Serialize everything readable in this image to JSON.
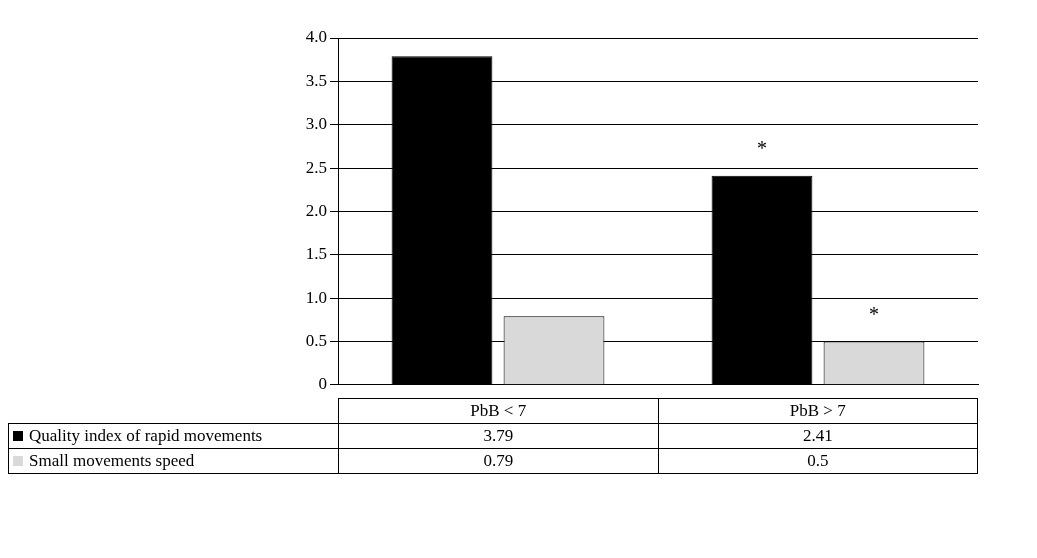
{
  "chart_data": {
    "type": "bar",
    "categories": [
      "PbB < 7",
      "PbB > 7"
    ],
    "series": [
      {
        "name": "Quality index of rapid movements",
        "color": "#000000",
        "values": [
          3.79,
          2.41
        ]
      },
      {
        "name": "Small movements speed",
        "color": "#d9d9d9",
        "values": [
          0.79,
          0.5
        ]
      }
    ],
    "ylim": [
      0,
      4
    ],
    "yticks": [
      0,
      {
        "value": 0.5,
        "label": "0.5"
      },
      {
        "value": 1,
        "label": "1.0"
      },
      {
        "value": 1.5,
        "label": "1.5"
      },
      {
        "value": 2,
        "label": "2.0"
      },
      {
        "value": 2.5,
        "label": "2.5"
      },
      {
        "value": 3,
        "label": "3.0"
      },
      {
        "value": 3.5,
        "label": "3.5"
      },
      {
        "value": 4,
        "label": "4.0"
      }
    ],
    "grid": "y",
    "legend": "bottom",
    "data_labels": true,
    "annotations": [
      "*",
      "*"
    ]
  }
}
